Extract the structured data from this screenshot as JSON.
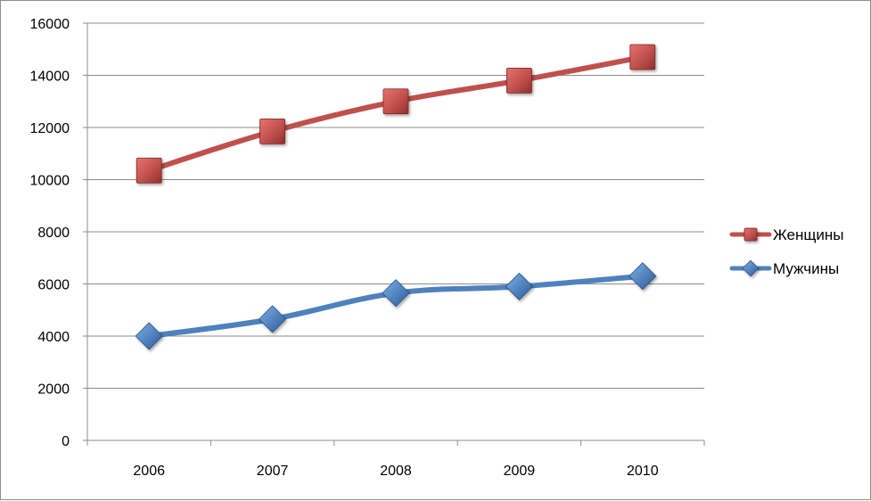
{
  "chart_data": {
    "type": "line",
    "categories": [
      "2006",
      "2007",
      "2008",
      "2009",
      "2010"
    ],
    "ylim": [
      0,
      16000
    ],
    "yticks": [
      0,
      2000,
      4000,
      6000,
      8000,
      10000,
      12000,
      14000,
      16000
    ],
    "grid": true,
    "legend_position": "right",
    "series": [
      {
        "name": "Женщины",
        "values": [
          10350,
          11850,
          13000,
          13800,
          14700
        ],
        "color": "#c0504d",
        "marker": "square"
      },
      {
        "name": "Мужчины",
        "values": [
          4000,
          4650,
          5650,
          5900,
          6300
        ],
        "color": "#4f81bd",
        "marker": "diamond"
      }
    ]
  }
}
